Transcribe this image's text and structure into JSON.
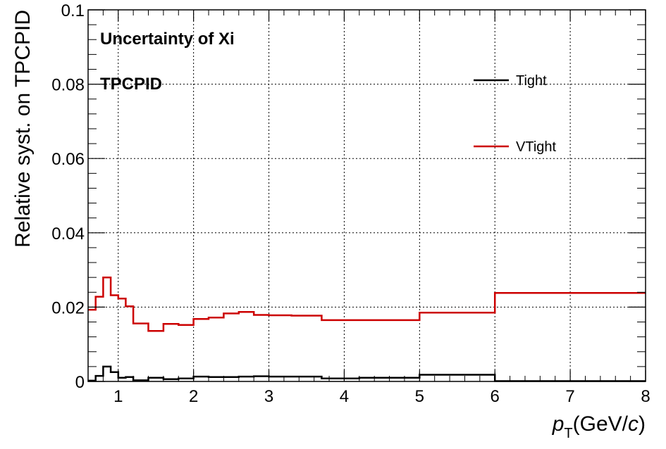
{
  "chart_data": {
    "type": "line",
    "step": true,
    "xlabel_main": "p",
    "xlabel_sub": "T",
    "xlabel_unit_open": "(GeV/",
    "xlabel_unit_var": "c",
    "xlabel_unit_close": ")",
    "ylabel": "Relative syst. on TPCPID",
    "xlim": [
      0.6,
      8
    ],
    "ylim": [
      0,
      0.1
    ],
    "x_ticks": [
      "1",
      "2",
      "3",
      "4",
      "5",
      "6",
      "7",
      "8"
    ],
    "x_tick_values": [
      1,
      2,
      3,
      4,
      5,
      6,
      7,
      8
    ],
    "y_ticks": [
      "0",
      "0.02",
      "0.04",
      "0.06",
      "0.08",
      "0.1"
    ],
    "y_tick_values": [
      0,
      0.02,
      0.04,
      0.06,
      0.08,
      0.1
    ],
    "grid": true,
    "annotations": [
      "Uncertainty of Xi",
      "TPCPID"
    ],
    "legend_position": "top-right",
    "bin_edges": [
      0.6,
      0.7,
      0.8,
      0.9,
      1.0,
      1.1,
      1.2,
      1.4,
      1.6,
      1.8,
      2.0,
      2.2,
      2.4,
      2.6,
      2.8,
      3.0,
      3.3,
      3.7,
      4.2,
      5.0,
      6.0,
      8.0
    ],
    "series": [
      {
        "name": "Tight",
        "color": "#000000",
        "values": [
          0.0002,
          0.0015,
          0.004,
          0.0025,
          0.001,
          0.0012,
          0.0003,
          0.001,
          0.0006,
          0.0008,
          0.0013,
          0.0012,
          0.0012,
          0.0013,
          0.0014,
          0.0013,
          0.0013,
          0.0008,
          0.001,
          0.0018,
          0.0001
        ]
      },
      {
        "name": "VTight",
        "color": "#cc0000",
        "values": [
          0.0193,
          0.0228,
          0.028,
          0.0232,
          0.0223,
          0.0202,
          0.0156,
          0.0136,
          0.0155,
          0.0152,
          0.0168,
          0.0172,
          0.0183,
          0.0187,
          0.0179,
          0.0178,
          0.0177,
          0.0165,
          0.0165,
          0.0185,
          0.0238
        ]
      }
    ]
  }
}
